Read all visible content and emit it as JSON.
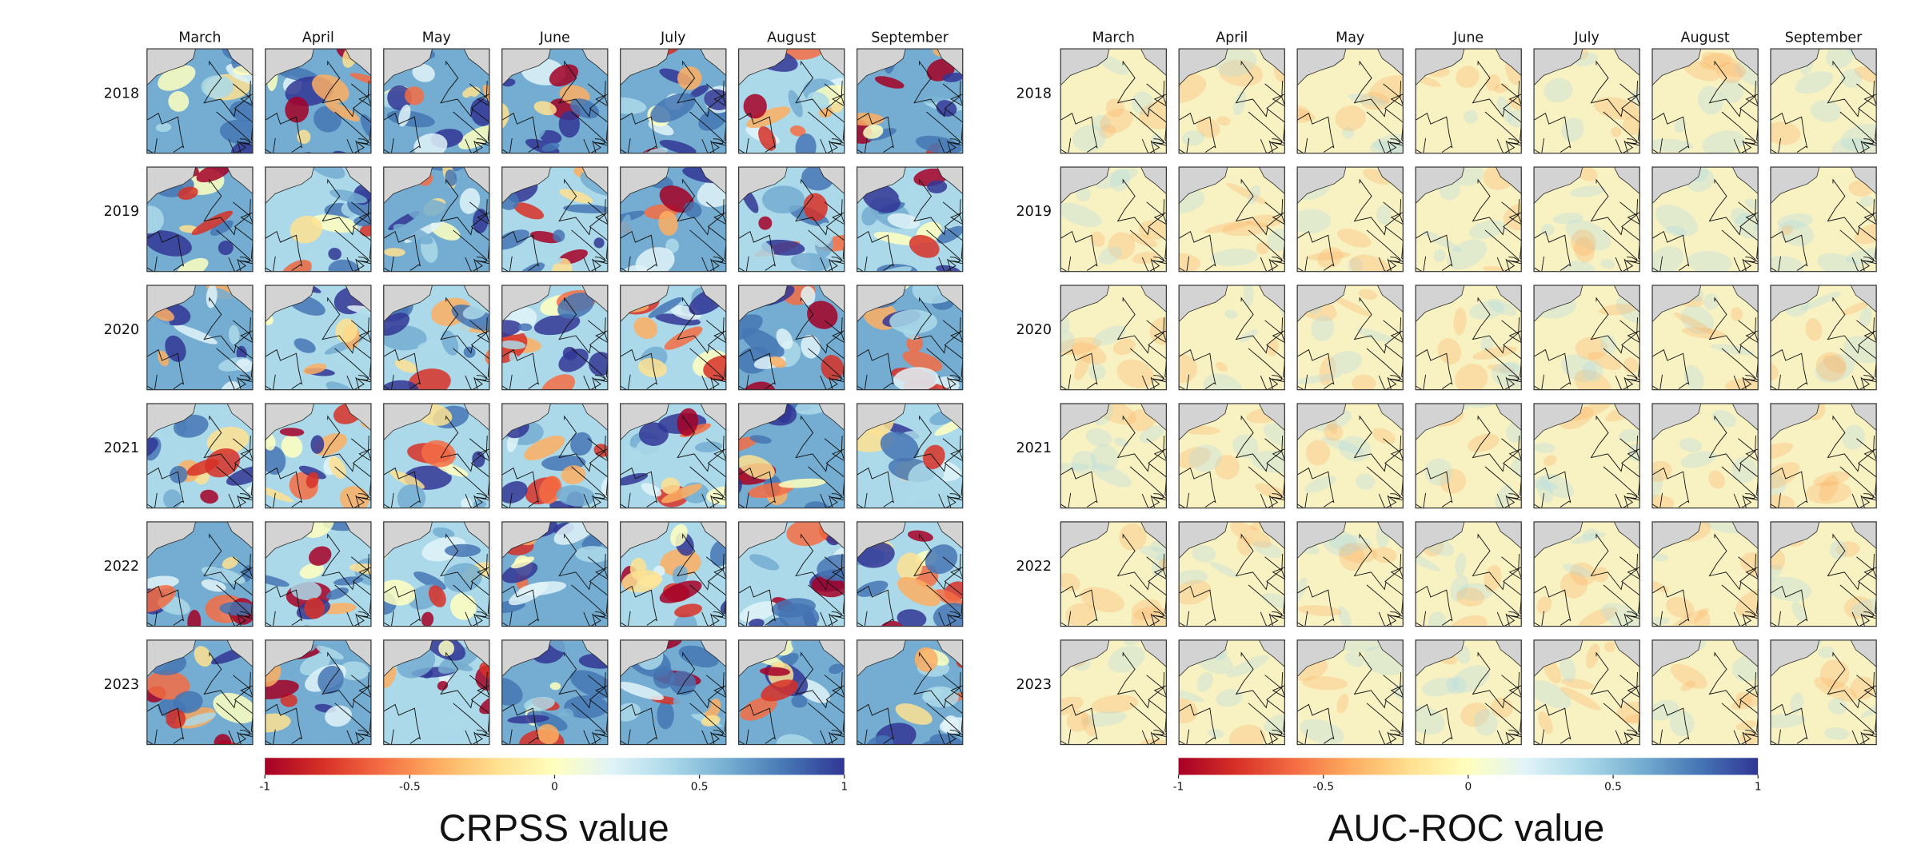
{
  "colorbar_colors": [
    "#a50026",
    "#d73027",
    "#f46d43",
    "#fdae61",
    "#fee090",
    "#ffffbf",
    "#e0f3f8",
    "#abd9e9",
    "#74add1",
    "#4575b4",
    "#313695"
  ],
  "panels": [
    {
      "months": [
        "March",
        "April",
        "May",
        "June",
        "July",
        "August",
        "September"
      ],
      "years": [
        "2018",
        "2019",
        "2020",
        "2021",
        "2022",
        "2023"
      ],
      "colorbar": {
        "lim": [
          -1,
          1
        ],
        "ticks": [
          -1,
          -0.5,
          0,
          0.5,
          1
        ]
      },
      "caption": "CRPSS value"
    },
    {
      "months": [
        "March",
        "April",
        "May",
        "June",
        "July",
        "August",
        "September"
      ],
      "years": [
        "2018",
        "2019",
        "2020",
        "2021",
        "2022",
        "2023"
      ],
      "colorbar": {
        "lim": [
          -1,
          1
        ],
        "ticks": [
          -1,
          -0.5,
          0,
          0.5,
          1
        ]
      },
      "caption": "AUC-ROC value"
    }
  ]
}
